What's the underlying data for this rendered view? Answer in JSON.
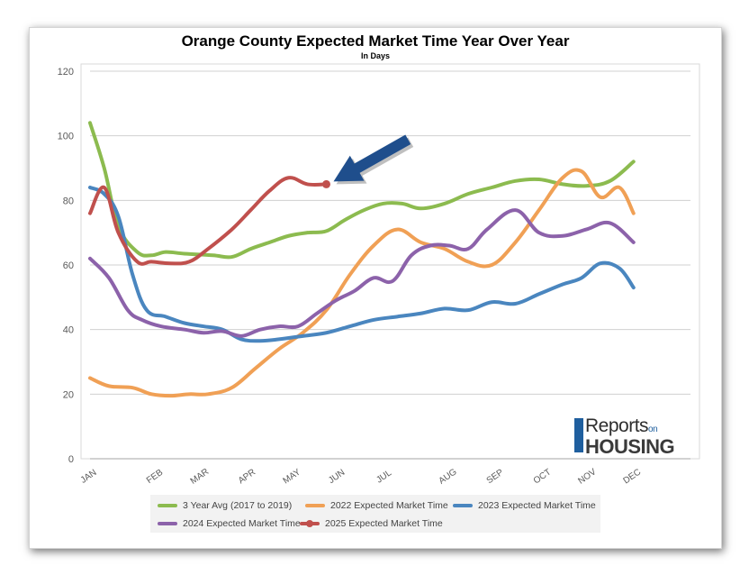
{
  "chart_data": {
    "type": "line",
    "title": "Orange County Expected Market Time Year Over Year",
    "subtitle": "In Days",
    "x": [
      "JAN",
      "FEB",
      "MAR",
      "APR",
      "MAY",
      "JUN",
      "JUL",
      "AUG",
      "SEP",
      "OCT",
      "NOV",
      "DEC"
    ],
    "ylim": [
      0,
      120
    ],
    "yticks": [
      0,
      20,
      40,
      60,
      80,
      100,
      120
    ],
    "grid": true,
    "legend_position": "bottom",
    "series": [
      {
        "name": "3 Year Avg (2017 to 2019)",
        "color": "#8cbb4f",
        "x": [
          0,
          0.3,
          0.6,
          1.0,
          1.3,
          1.6,
          2.0,
          2.6,
          3.0,
          3.4,
          3.8,
          4.2,
          4.6,
          5.0,
          5.4,
          5.8,
          6.2,
          6.6,
          7.0,
          7.5,
          8.0,
          8.5,
          9.0,
          9.5,
          10.0,
          10.5,
          11.0,
          11.5
        ],
        "values": [
          104,
          90,
          72,
          64,
          63,
          64,
          63.5,
          63,
          62.5,
          65,
          67,
          69,
          70,
          70.5,
          74,
          77,
          79,
          79,
          77.5,
          79,
          82,
          84,
          86,
          86.5,
          85,
          84.5,
          86,
          92
        ]
      },
      {
        "name": "2022 Expected Market Time",
        "color": "#f0a055",
        "x": [
          0,
          0.4,
          0.9,
          1.3,
          1.7,
          2.1,
          2.5,
          3.0,
          3.5,
          4.0,
          4.5,
          5.0,
          5.5,
          6.0,
          6.5,
          7.0,
          7.5,
          8.0,
          8.5,
          9.0,
          9.5,
          10.0,
          10.4,
          10.8,
          11.2,
          11.5
        ],
        "values": [
          25,
          22.5,
          22,
          20,
          19.5,
          20,
          20,
          22,
          28,
          34,
          39,
          46,
          57,
          66,
          71,
          67,
          65,
          61,
          60,
          67,
          77,
          87,
          89,
          81,
          84,
          76
        ]
      },
      {
        "name": "2023 Expected Market Time",
        "color": "#4a86bf",
        "x": [
          0,
          0.3,
          0.6,
          0.9,
          1.2,
          1.6,
          2.0,
          2.4,
          2.8,
          3.2,
          3.6,
          4.0,
          4.5,
          5.0,
          5.5,
          6.0,
          6.5,
          7.0,
          7.5,
          8.0,
          8.5,
          9.0,
          9.5,
          10.0,
          10.4,
          10.8,
          11.2,
          11.5
        ],
        "values": [
          84,
          82,
          75,
          57,
          46,
          44,
          42,
          41,
          40,
          37,
          36.5,
          37,
          38,
          39,
          41,
          43,
          44,
          45,
          46.5,
          46,
          48.5,
          48,
          51,
          54,
          56,
          60.5,
          59,
          53
        ]
      },
      {
        "name": "2024 Expected Market Time",
        "color": "#8c62aa",
        "x": [
          0,
          0.4,
          0.8,
          1.1,
          1.5,
          2.0,
          2.4,
          2.8,
          3.2,
          3.6,
          4.0,
          4.4,
          4.8,
          5.2,
          5.6,
          6.0,
          6.4,
          6.8,
          7.2,
          7.6,
          8.0,
          8.4,
          9.0,
          9.5,
          10.0,
          10.5,
          11.0,
          11.5
        ],
        "values": [
          62,
          56,
          46,
          43,
          41,
          40,
          39,
          39.5,
          38,
          40,
          41,
          41,
          45,
          49,
          52,
          56,
          55,
          63,
          66,
          66,
          65,
          71,
          77,
          70,
          69,
          71,
          73,
          67
        ]
      },
      {
        "name": "2025 Expected Market Time",
        "color": "#c0504d",
        "marker": "circle",
        "x": [
          0,
          0.3,
          0.6,
          1.0,
          1.3,
          1.7,
          2.1,
          2.5,
          3.0,
          3.4,
          3.8,
          4.2,
          4.6,
          5.0
        ],
        "values": [
          76,
          84,
          70,
          61,
          61,
          60.5,
          61,
          65,
          71,
          77,
          83,
          87,
          85,
          85
        ]
      }
    ],
    "annotation": "arrow pointing to latest 2025 value",
    "arrow_color": "#1f4e8c"
  },
  "logo": {
    "line1": "Reports",
    "line1_small": "on",
    "line2": "HOUSING"
  }
}
